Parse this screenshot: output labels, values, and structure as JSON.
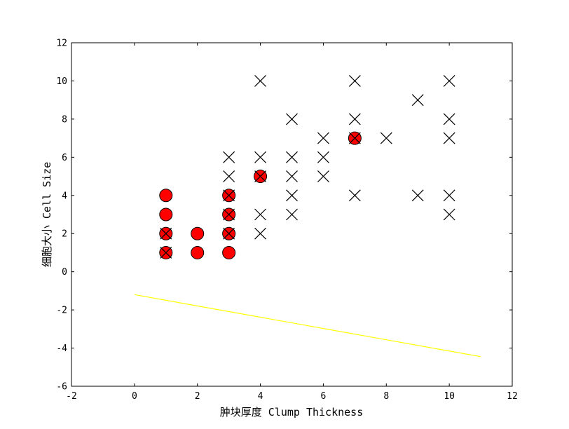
{
  "chart_data": {
    "type": "scatter",
    "title": "",
    "xlabel": "肿块厚度 Clump Thickness",
    "ylabel": "细胞大小 Cell Size",
    "xlim": [
      -2,
      12
    ],
    "ylim": [
      -6,
      12
    ],
    "xticks": [
      -2,
      0,
      2,
      4,
      6,
      8,
      10,
      12
    ],
    "yticks": [
      -6,
      -4,
      -2,
      0,
      2,
      4,
      6,
      8,
      10,
      12
    ],
    "grid": false,
    "legend": "none",
    "series": [
      {
        "marker": "circle",
        "color": "#ff0000",
        "points": [
          [
            1,
            1
          ],
          [
            1,
            2
          ],
          [
            1,
            3
          ],
          [
            1,
            4
          ],
          [
            2,
            1
          ],
          [
            2,
            2
          ],
          [
            3,
            1
          ],
          [
            3,
            2
          ],
          [
            3,
            3
          ],
          [
            3,
            4
          ],
          [
            4,
            5
          ],
          [
            7,
            7
          ]
        ]
      },
      {
        "marker": "x",
        "color": "#000000",
        "points": [
          [
            1,
            1
          ],
          [
            1,
            2
          ],
          [
            3,
            2
          ],
          [
            3,
            3
          ],
          [
            3,
            4
          ],
          [
            3,
            5
          ],
          [
            3,
            6
          ],
          [
            4,
            2
          ],
          [
            4,
            3
          ],
          [
            4,
            5
          ],
          [
            4,
            6
          ],
          [
            4,
            10
          ],
          [
            5,
            3
          ],
          [
            5,
            4
          ],
          [
            5,
            5
          ],
          [
            5,
            6
          ],
          [
            5,
            8
          ],
          [
            6,
            5
          ],
          [
            6,
            6
          ],
          [
            6,
            7
          ],
          [
            7,
            4
          ],
          [
            7,
            7
          ],
          [
            7,
            8
          ],
          [
            7,
            10
          ],
          [
            8,
            7
          ],
          [
            9,
            4
          ],
          [
            9,
            9
          ],
          [
            10,
            3
          ],
          [
            10,
            4
          ],
          [
            10,
            7
          ],
          [
            10,
            8
          ],
          [
            10,
            10
          ]
        ]
      },
      {
        "marker": "line",
        "color": "#ffff00",
        "points": [
          [
            0,
            -1.2
          ],
          [
            11,
            -4.45
          ]
        ]
      }
    ]
  }
}
